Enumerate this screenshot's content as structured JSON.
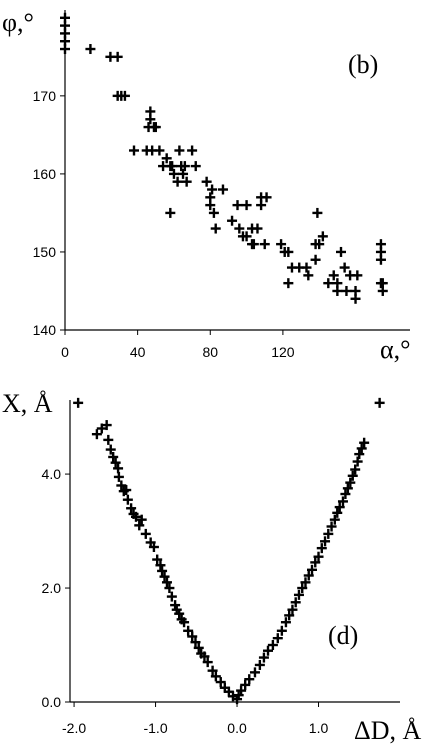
{
  "colors": {
    "background": "#ffffff",
    "ink": "#000000"
  },
  "chart_data": [
    {
      "type": "scatter",
      "panel_label": "(b)",
      "xlabel": "α,°",
      "ylabel": "φ,°",
      "xlim": [
        0,
        190
      ],
      "ylim": [
        140,
        181
      ],
      "x_ticks": [
        0,
        40,
        80,
        120
      ],
      "y_ticks": [
        140,
        150,
        160,
        170
      ],
      "marker": "+",
      "series": [
        {
          "points": [
            [
              0,
              180
            ],
            [
              0,
              179
            ],
            [
              0,
              178
            ],
            [
              0,
              177
            ],
            [
              0,
              176
            ],
            [
              14,
              176
            ],
            [
              25,
              175
            ],
            [
              29,
              175
            ],
            [
              29,
              170
            ],
            [
              31,
              170
            ],
            [
              33,
              170
            ],
            [
              38,
              163
            ],
            [
              45,
              163
            ],
            [
              46,
              166
            ],
            [
              47,
              168
            ],
            [
              47,
              167
            ],
            [
              48,
              163
            ],
            [
              49,
              166
            ],
            [
              50,
              166
            ],
            [
              52,
              163
            ],
            [
              54,
              161
            ],
            [
              56,
              162
            ],
            [
              58,
              155
            ],
            [
              58,
              161
            ],
            [
              59,
              161
            ],
            [
              60,
              160
            ],
            [
              62,
              159
            ],
            [
              63,
              163
            ],
            [
              64,
              161
            ],
            [
              65,
              160
            ],
            [
              66,
              161
            ],
            [
              67,
              159
            ],
            [
              70,
              163
            ],
            [
              72,
              161
            ],
            [
              78,
              159
            ],
            [
              80,
              157
            ],
            [
              80,
              156
            ],
            [
              81,
              158
            ],
            [
              82,
              155
            ],
            [
              83,
              153
            ],
            [
              87,
              158
            ],
            [
              92,
              154
            ],
            [
              95,
              156
            ],
            [
              96,
              153
            ],
            [
              98,
              152
            ],
            [
              100,
              152
            ],
            [
              100,
              156
            ],
            [
              103,
              151
            ],
            [
              103,
              153
            ],
            [
              104,
              151
            ],
            [
              106,
              153
            ],
            [
              108,
              157
            ],
            [
              108,
              156
            ],
            [
              110,
              151
            ],
            [
              111,
              157
            ],
            [
              119,
              151
            ],
            [
              121,
              150
            ],
            [
              123,
              150
            ],
            [
              123,
              146
            ],
            [
              125,
              148
            ],
            [
              129,
              148
            ],
            [
              133,
              148
            ],
            [
              134,
              147
            ],
            [
              138,
              151
            ],
            [
              138,
              149
            ],
            [
              139,
              155
            ],
            [
              140,
              151
            ],
            [
              142,
              152
            ],
            [
              145,
              146
            ],
            [
              148,
              147
            ],
            [
              150,
              145
            ],
            [
              150,
              146
            ],
            [
              152,
              150
            ],
            [
              154,
              148
            ],
            [
              155,
              145
            ],
            [
              157,
              147
            ],
            [
              160,
              144
            ],
            [
              160,
              145
            ],
            [
              161,
              147
            ],
            [
              174,
              151
            ],
            [
              174,
              150
            ],
            [
              174,
              149
            ],
            [
              174,
              146
            ],
            [
              175,
              145
            ],
            [
              175,
              146
            ]
          ]
        }
      ]
    },
    {
      "type": "scatter",
      "panel_label": "(d)",
      "xlabel": "ΔD, Å",
      "ylabel": "X, Å",
      "xlim": [
        -2.05,
        2.0
      ],
      "ylim": [
        0,
        5.3
      ],
      "x_ticks": [
        -2.0,
        -1.0,
        0.0,
        1.0
      ],
      "x_tick_labels": [
        "-2.0",
        "-1.0",
        "0.0",
        "1.0"
      ],
      "y_ticks": [
        0.0,
        2.0,
        4.0
      ],
      "y_tick_labels": [
        "0.0",
        "2.0",
        "4.0"
      ],
      "marker": "+",
      "series": [
        {
          "points": [
            [
              -1.95,
              5.25
            ],
            [
              1.75,
              5.25
            ],
            [
              -1.72,
              4.7
            ],
            [
              -1.66,
              4.8
            ],
            [
              -1.6,
              4.86
            ],
            [
              -1.58,
              4.6
            ],
            [
              -1.55,
              4.43
            ],
            [
              -1.52,
              4.3
            ],
            [
              -1.49,
              4.2
            ],
            [
              -1.46,
              4.1
            ],
            [
              -1.45,
              3.95
            ],
            [
              -1.42,
              3.8
            ],
            [
              -1.39,
              3.7
            ],
            [
              -1.36,
              3.72
            ],
            [
              -1.34,
              3.55
            ],
            [
              -1.3,
              3.4
            ],
            [
              -1.27,
              3.3
            ],
            [
              -1.24,
              3.25
            ],
            [
              -1.2,
              3.1
            ],
            [
              -1.17,
              3.2
            ],
            [
              -1.12,
              2.95
            ],
            [
              -1.06,
              2.8
            ],
            [
              -1.02,
              2.72
            ],
            [
              -0.98,
              2.5
            ],
            [
              -0.94,
              2.4
            ],
            [
              -0.92,
              2.3
            ],
            [
              -0.89,
              2.2
            ],
            [
              -0.86,
              2.1
            ],
            [
              -0.83,
              2.0
            ],
            [
              -0.8,
              1.85
            ],
            [
              -0.76,
              1.7
            ],
            [
              -0.74,
              1.62
            ],
            [
              -0.71,
              1.55
            ],
            [
              -0.68,
              1.45
            ],
            [
              -0.65,
              1.4
            ],
            [
              -0.6,
              1.25
            ],
            [
              -0.55,
              1.15
            ],
            [
              -0.51,
              1.05
            ],
            [
              -0.47,
              0.95
            ],
            [
              -0.44,
              0.85
            ],
            [
              -0.4,
              0.8
            ],
            [
              -0.36,
              0.7
            ],
            [
              -0.3,
              0.55
            ],
            [
              -0.26,
              0.45
            ],
            [
              -0.2,
              0.35
            ],
            [
              -0.15,
              0.25
            ],
            [
              -0.1,
              0.18
            ],
            [
              -0.05,
              0.1
            ],
            [
              0.0,
              0.05
            ],
            [
              0.02,
              0.12
            ],
            [
              0.05,
              0.2
            ],
            [
              0.1,
              0.3
            ],
            [
              0.15,
              0.4
            ],
            [
              0.22,
              0.52
            ],
            [
              0.28,
              0.65
            ],
            [
              0.33,
              0.78
            ],
            [
              0.38,
              0.9
            ],
            [
              0.44,
              1.0
            ],
            [
              0.5,
              1.12
            ],
            [
              0.55,
              1.25
            ],
            [
              0.6,
              1.4
            ],
            [
              0.64,
              1.52
            ],
            [
              0.68,
              1.62
            ],
            [
              0.72,
              1.75
            ],
            [
              0.76,
              1.88
            ],
            [
              0.8,
              2.0
            ],
            [
              0.84,
              2.1
            ],
            [
              0.88,
              2.22
            ],
            [
              0.92,
              2.32
            ],
            [
              0.96,
              2.45
            ],
            [
              1.0,
              2.55
            ],
            [
              1.04,
              2.7
            ],
            [
              1.08,
              2.82
            ],
            [
              1.12,
              2.95
            ],
            [
              1.16,
              3.08
            ],
            [
              1.2,
              3.2
            ],
            [
              1.23,
              3.32
            ],
            [
              1.26,
              3.42
            ],
            [
              1.3,
              3.52
            ],
            [
              1.33,
              3.65
            ],
            [
              1.36,
              3.75
            ],
            [
              1.39,
              3.85
            ],
            [
              1.42,
              3.97
            ],
            [
              1.45,
              4.08
            ],
            [
              1.48,
              4.22
            ],
            [
              1.5,
              4.35
            ],
            [
              1.53,
              4.45
            ],
            [
              1.56,
              4.55
            ]
          ]
        }
      ]
    }
  ]
}
